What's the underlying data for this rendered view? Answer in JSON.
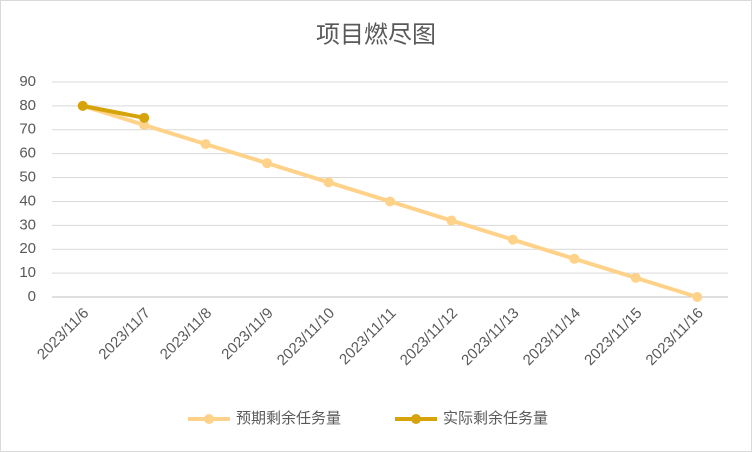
{
  "chart_data": {
    "type": "line",
    "title": "项目燃尽图",
    "categories": [
      "2023/11/6",
      "2023/11/7",
      "2023/11/8",
      "2023/11/9",
      "2023/11/10",
      "2023/11/11",
      "2023/11/12",
      "2023/11/13",
      "2023/11/14",
      "2023/11/15",
      "2023/11/16"
    ],
    "series": [
      {
        "name": "预期剩余任务量",
        "color": "#ffd28a",
        "values": [
          80,
          72,
          64,
          56,
          48,
          40,
          32,
          24,
          16,
          8,
          0
        ]
      },
      {
        "name": "实际剩余任务量",
        "color": "#d6a30b",
        "values": [
          80,
          75,
          null,
          null,
          null,
          null,
          null,
          null,
          null,
          null,
          null
        ]
      }
    ],
    "ylim": [
      0,
      90
    ],
    "yticks": [
      0,
      10,
      20,
      30,
      40,
      50,
      60,
      70,
      80,
      90
    ],
    "grid": true,
    "legend": "bottom"
  }
}
